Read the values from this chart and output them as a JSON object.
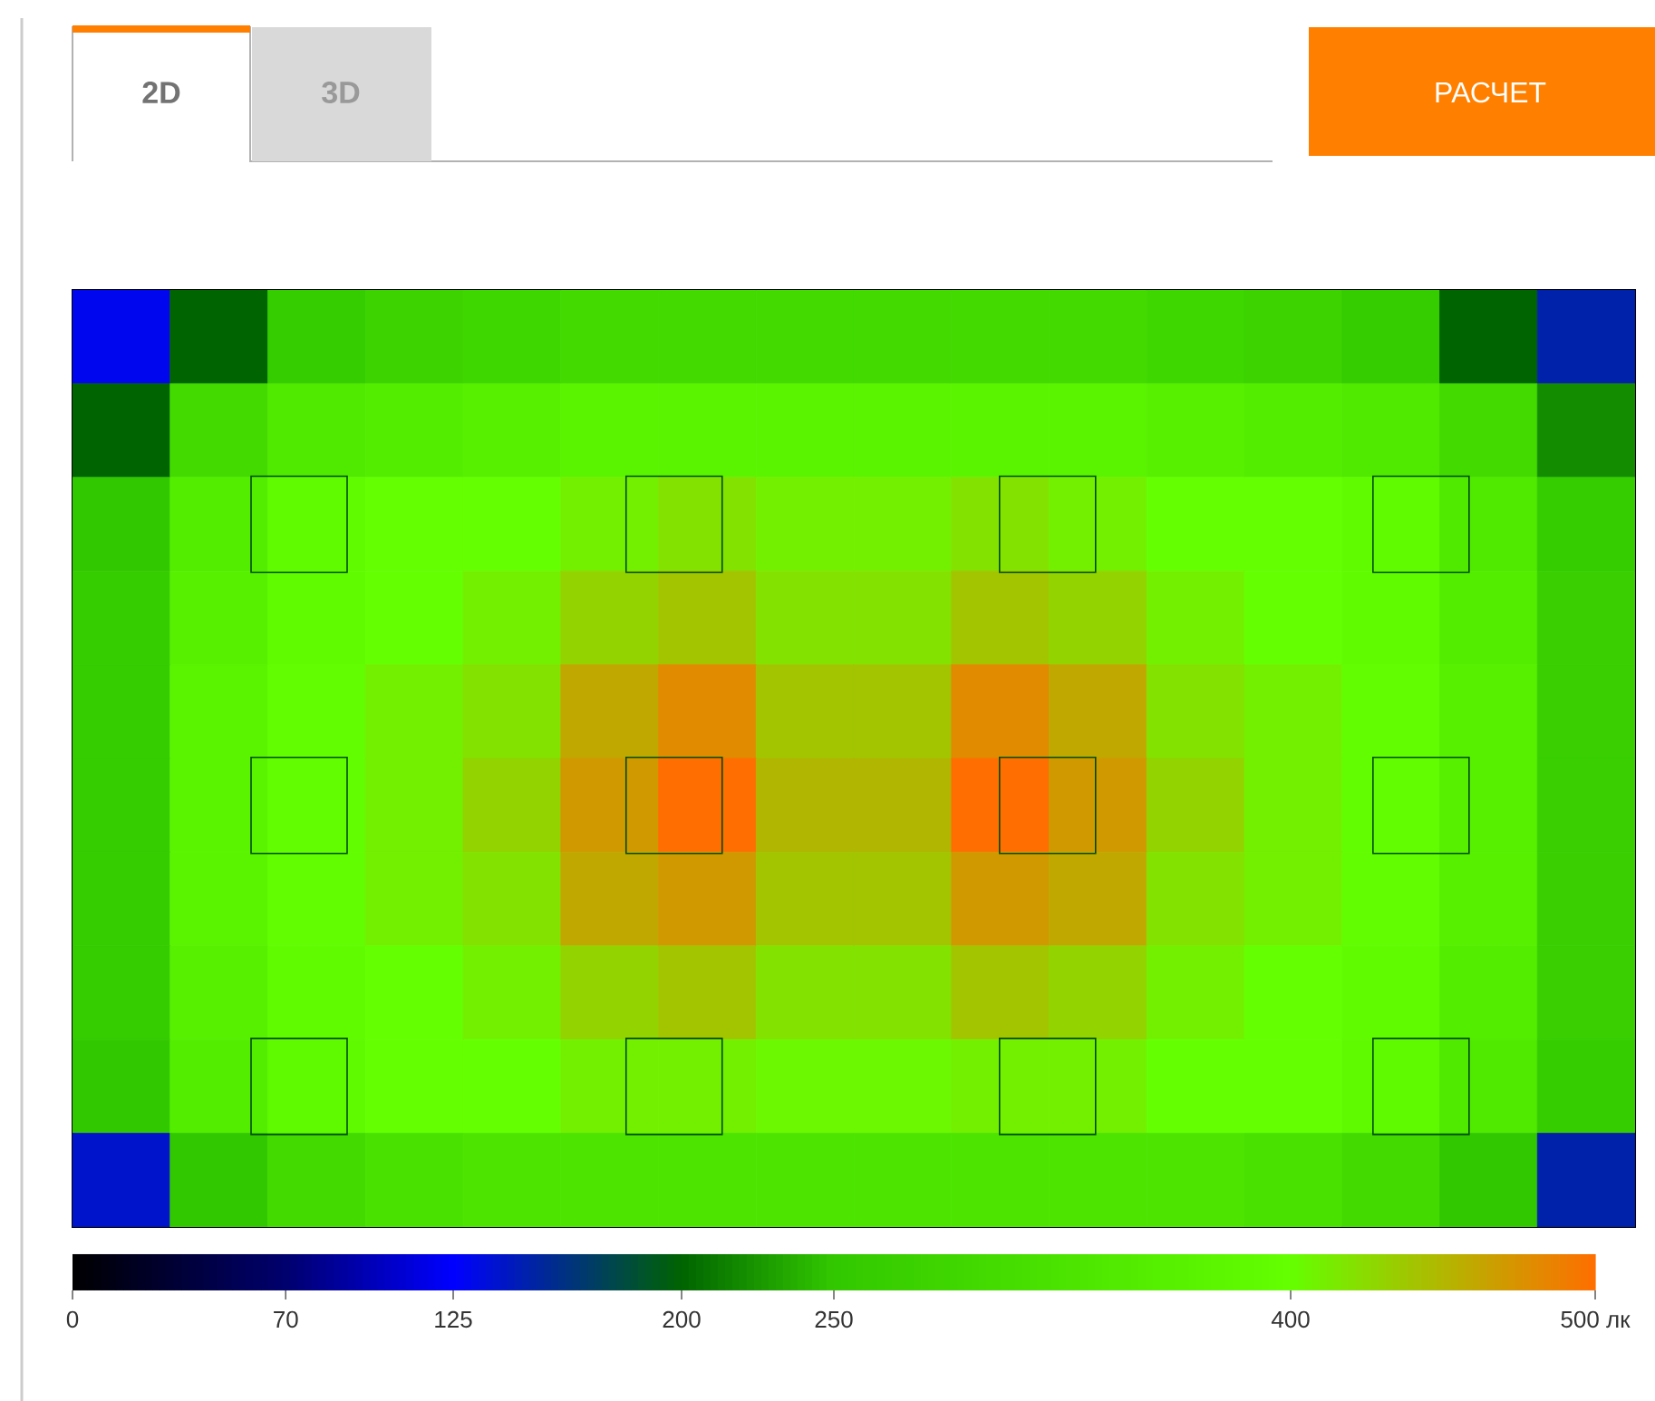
{
  "chart_data": {
    "type": "heatmap",
    "categories": [
      null,
      null,
      null,
      null,
      null,
      null,
      null,
      null,
      null,
      null,
      null,
      null,
      null,
      null,
      null,
      null
    ],
    "y_categories": [
      null,
      null,
      null,
      null,
      null,
      null,
      null,
      null,
      null,
      null
    ],
    "cells": [
      [
        130,
        200,
        260,
        280,
        290,
        300,
        300,
        300,
        300,
        300,
        300,
        290,
        280,
        260,
        200,
        150
      ],
      [
        200,
        300,
        340,
        350,
        360,
        370,
        370,
        370,
        370,
        370,
        370,
        360,
        350,
        340,
        300,
        220
      ],
      [
        250,
        350,
        390,
        400,
        400,
        410,
        420,
        410,
        410,
        420,
        410,
        400,
        400,
        390,
        340,
        260
      ],
      [
        260,
        360,
        390,
        400,
        410,
        430,
        440,
        420,
        420,
        440,
        430,
        410,
        400,
        390,
        350,
        270
      ],
      [
        260,
        370,
        395,
        410,
        420,
        460,
        480,
        440,
        440,
        480,
        460,
        420,
        410,
        395,
        360,
        270
      ],
      [
        260,
        370,
        395,
        410,
        430,
        470,
        500,
        450,
        450,
        500,
        470,
        430,
        410,
        395,
        360,
        270
      ],
      [
        260,
        370,
        395,
        410,
        420,
        460,
        470,
        440,
        440,
        470,
        460,
        420,
        410,
        395,
        360,
        270
      ],
      [
        260,
        360,
        390,
        400,
        410,
        430,
        440,
        420,
        420,
        440,
        430,
        410,
        400,
        390,
        350,
        270
      ],
      [
        250,
        350,
        385,
        400,
        400,
        410,
        410,
        405,
        405,
        410,
        410,
        400,
        400,
        385,
        340,
        260
      ],
      [
        140,
        250,
        300,
        320,
        330,
        330,
        330,
        330,
        330,
        330,
        330,
        330,
        320,
        300,
        250,
        150
      ]
    ],
    "clim": [
      0,
      500
    ],
    "cticks": [
      0,
      70,
      125,
      200,
      250,
      400,
      {
        "value": 500,
        "label": "500 лк"
      }
    ],
    "tick_labels": false,
    "annotations": [
      "2D",
      "3D",
      "РАСЧЕТ"
    ]
  }
}
